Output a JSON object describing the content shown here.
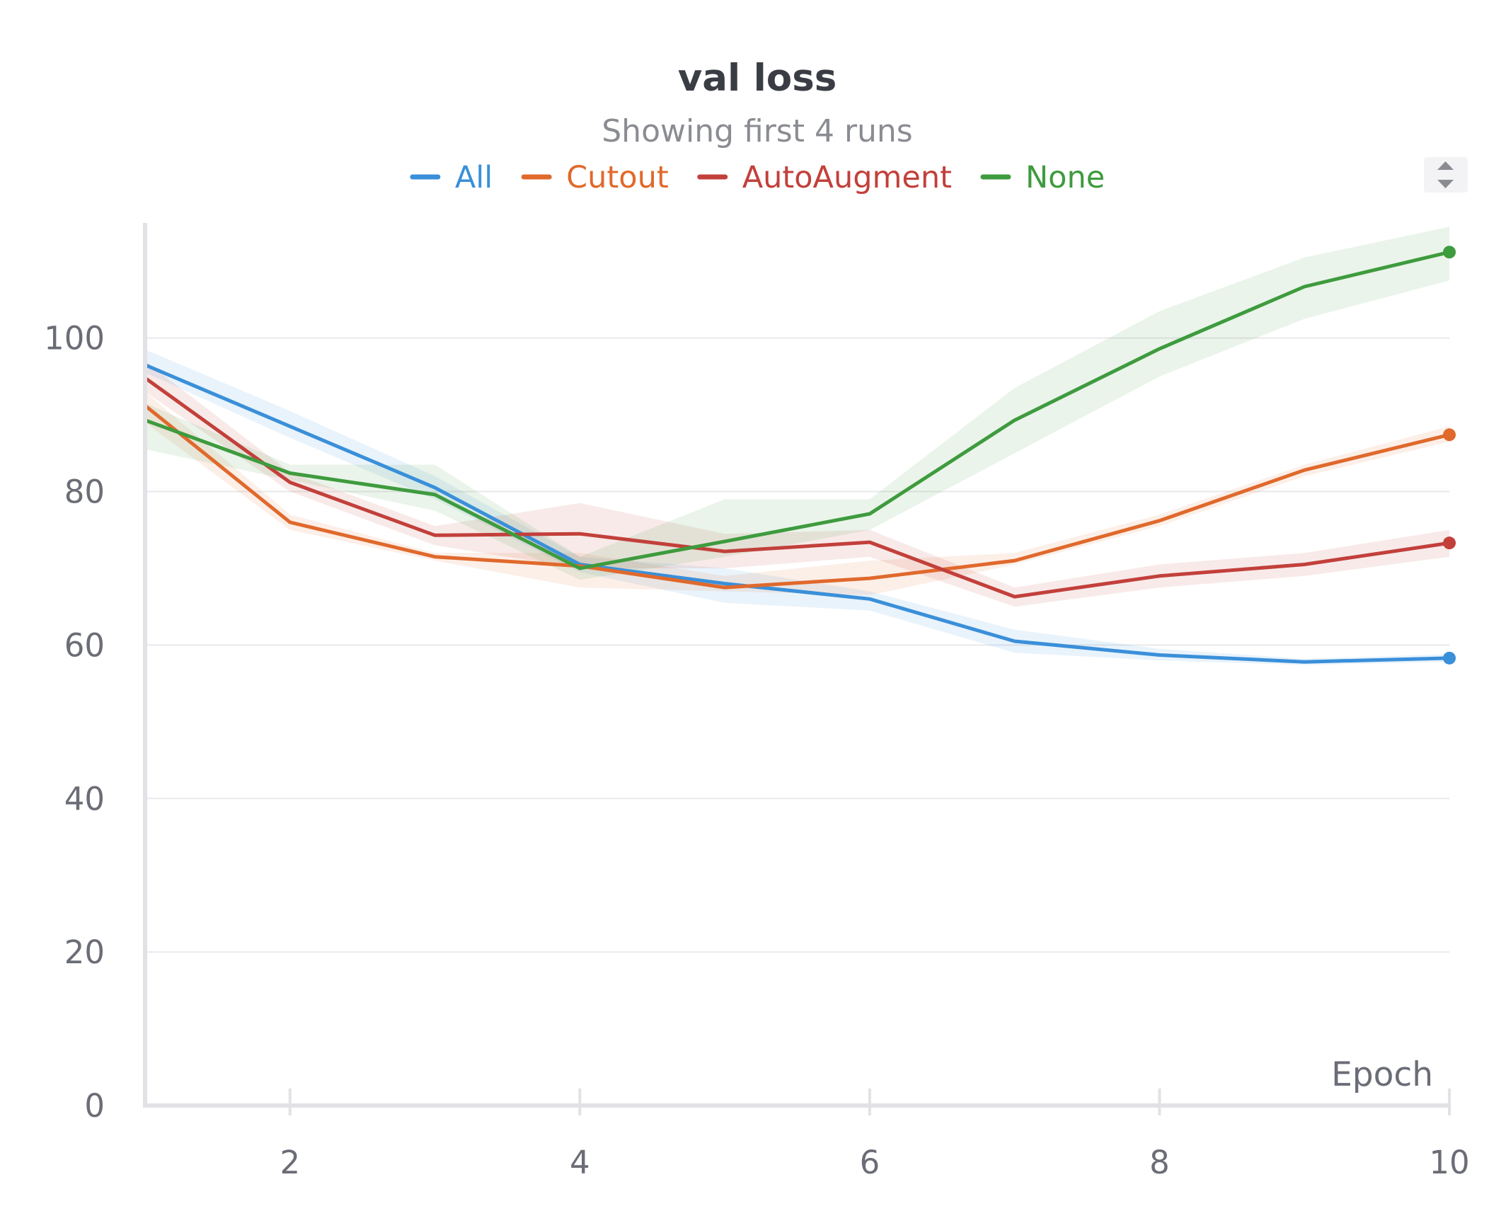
{
  "chart_data": {
    "type": "line",
    "title": "val loss",
    "subtitle": "Showing first 4 runs",
    "xlabel": "Epoch",
    "ylabel": "",
    "xlim": [
      1,
      10
    ],
    "ylim": [
      0,
      115
    ],
    "x_ticks": [
      2,
      4,
      6,
      8,
      10
    ],
    "y_ticks": [
      0,
      20,
      40,
      60,
      80,
      100
    ],
    "grid": true,
    "legend_position": "top-center",
    "x": [
      1,
      2,
      3,
      4,
      5,
      6,
      7,
      8,
      9,
      10
    ],
    "series": [
      {
        "name": "All",
        "color": "#3a8fd9",
        "values": [
          96.5,
          88.5,
          80.5,
          70.5,
          68,
          66,
          60.5,
          58.7,
          57.8,
          58.3
        ],
        "lower": [
          95.5,
          87,
          79,
          69.5,
          65.5,
          64.5,
          59,
          58,
          57.4,
          57.8
        ],
        "upper": [
          98.5,
          90.5,
          82,
          71.5,
          70,
          67,
          62,
          59.5,
          58.2,
          58.8
        ]
      },
      {
        "name": "Cutout",
        "color": "#e0692c",
        "values": [
          91.2,
          76,
          71.5,
          70.3,
          67.5,
          68.7,
          71,
          76.2,
          82.8,
          87.4
        ],
        "lower": [
          89,
          75,
          71,
          67.5,
          67,
          66.5,
          70.5,
          75.5,
          82,
          86.5
        ],
        "upper": [
          93,
          77,
          72,
          72,
          69,
          71,
          72,
          77,
          83.5,
          88.5
        ]
      },
      {
        "name": "AutoAugment",
        "color": "#c2403b",
        "values": [
          94.8,
          81.2,
          74.3,
          74.5,
          72.2,
          73.4,
          66.3,
          69,
          70.5,
          73.3
        ],
        "lower": [
          93,
          80,
          73,
          70,
          70,
          71.5,
          65,
          67.5,
          69,
          71.5
        ],
        "upper": [
          97,
          82.5,
          75.5,
          78.5,
          74.5,
          75,
          67.5,
          70.5,
          72,
          75
        ]
      },
      {
        "name": "None",
        "color": "#3e9b3e",
        "values": [
          89.3,
          82.4,
          79.6,
          70,
          73.5,
          77.1,
          89.3,
          98.6,
          106.7,
          111.2
        ],
        "lower": [
          85.5,
          81.5,
          77.5,
          68.5,
          71.5,
          75,
          85,
          95,
          102.5,
          107.5
        ],
        "upper": [
          91.5,
          83.5,
          83.5,
          71.5,
          79,
          79,
          93.5,
          103.5,
          110.5,
          114.5
        ]
      }
    ]
  }
}
